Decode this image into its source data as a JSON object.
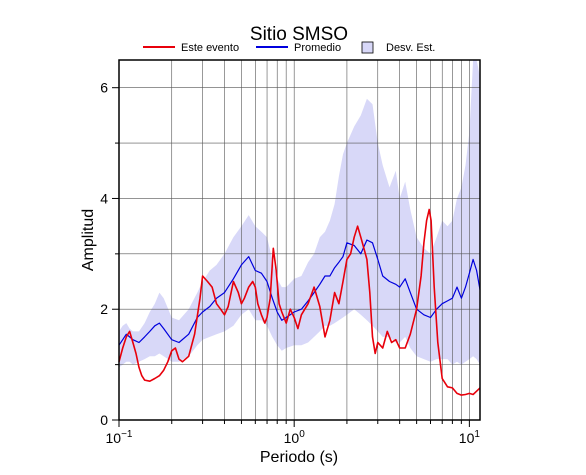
{
  "chart_data": {
    "type": "line",
    "title": "Sitio SMSO",
    "xlabel": "Periodo (s)",
    "ylabel": "Amplitud",
    "x_scale": "log",
    "xlim": [
      0.1,
      11.5
    ],
    "ylim": [
      0,
      6.5
    ],
    "x_ticks": [
      {
        "value": 0.1,
        "base": "10",
        "exp": "−1"
      },
      {
        "value": 1,
        "base": "10",
        "exp": "0"
      },
      {
        "value": 10,
        "base": "10",
        "exp": "1"
      }
    ],
    "y_ticks": [
      0,
      2,
      4,
      6
    ],
    "grid": true,
    "legend": {
      "placement": "top",
      "entries": [
        {
          "label": "Este evento",
          "kind": "line",
          "color": "#e8000b"
        },
        {
          "label": "Promedio",
          "kind": "line",
          "color": "#0000dd"
        },
        {
          "label": "Desv. Est.",
          "kind": "band",
          "color": "#d8d8f8"
        }
      ]
    },
    "series": [
      {
        "name": "Este evento",
        "color": "#e8000b",
        "points": [
          [
            0.1,
            1.05
          ],
          [
            0.105,
            1.3
          ],
          [
            0.11,
            1.5
          ],
          [
            0.115,
            1.6
          ],
          [
            0.12,
            1.4
          ],
          [
            0.125,
            1.2
          ],
          [
            0.13,
            0.95
          ],
          [
            0.135,
            0.8
          ],
          [
            0.14,
            0.72
          ],
          [
            0.15,
            0.7
          ],
          [
            0.16,
            0.75
          ],
          [
            0.17,
            0.8
          ],
          [
            0.18,
            0.9
          ],
          [
            0.19,
            1.05
          ],
          [
            0.2,
            1.25
          ],
          [
            0.21,
            1.3
          ],
          [
            0.22,
            1.1
          ],
          [
            0.23,
            1.05
          ],
          [
            0.25,
            1.15
          ],
          [
            0.27,
            1.55
          ],
          [
            0.29,
            2.2
          ],
          [
            0.3,
            2.6
          ],
          [
            0.32,
            2.5
          ],
          [
            0.34,
            2.4
          ],
          [
            0.36,
            2.1
          ],
          [
            0.38,
            2.0
          ],
          [
            0.4,
            1.9
          ],
          [
            0.42,
            2.05
          ],
          [
            0.45,
            2.5
          ],
          [
            0.48,
            2.3
          ],
          [
            0.5,
            2.1
          ],
          [
            0.52,
            2.2
          ],
          [
            0.55,
            2.4
          ],
          [
            0.58,
            2.5
          ],
          [
            0.6,
            2.4
          ],
          [
            0.62,
            2.1
          ],
          [
            0.65,
            1.9
          ],
          [
            0.68,
            1.75
          ],
          [
            0.7,
            1.85
          ],
          [
            0.73,
            2.2
          ],
          [
            0.76,
            3.1
          ],
          [
            0.79,
            2.7
          ],
          [
            0.82,
            2.1
          ],
          [
            0.85,
            1.95
          ],
          [
            0.9,
            1.75
          ],
          [
            0.95,
            2.0
          ],
          [
            1.0,
            1.85
          ],
          [
            1.05,
            1.65
          ],
          [
            1.1,
            1.9
          ],
          [
            1.2,
            2.1
          ],
          [
            1.3,
            2.4
          ],
          [
            1.4,
            2.05
          ],
          [
            1.5,
            1.5
          ],
          [
            1.6,
            1.8
          ],
          [
            1.7,
            2.3
          ],
          [
            1.8,
            2.1
          ],
          [
            1.9,
            2.5
          ],
          [
            2.0,
            2.9
          ],
          [
            2.1,
            3.0
          ],
          [
            2.2,
            3.3
          ],
          [
            2.3,
            3.5
          ],
          [
            2.4,
            3.3
          ],
          [
            2.5,
            3.1
          ],
          [
            2.6,
            2.9
          ],
          [
            2.7,
            2.3
          ],
          [
            2.8,
            1.5
          ],
          [
            2.9,
            1.2
          ],
          [
            3.0,
            1.4
          ],
          [
            3.2,
            1.3
          ],
          [
            3.4,
            1.6
          ],
          [
            3.6,
            1.4
          ],
          [
            3.8,
            1.45
          ],
          [
            4.0,
            1.3
          ],
          [
            4.3,
            1.3
          ],
          [
            4.6,
            1.55
          ],
          [
            5.0,
            2.0
          ],
          [
            5.3,
            2.6
          ],
          [
            5.5,
            3.2
          ],
          [
            5.7,
            3.6
          ],
          [
            5.9,
            3.8
          ],
          [
            6.05,
            3.6
          ],
          [
            6.3,
            2.4
          ],
          [
            6.6,
            1.4
          ],
          [
            7.0,
            0.75
          ],
          [
            7.5,
            0.6
          ],
          [
            8.0,
            0.58
          ],
          [
            8.5,
            0.48
          ],
          [
            9.0,
            0.45
          ],
          [
            9.5,
            0.46
          ],
          [
            10.0,
            0.48
          ],
          [
            10.5,
            0.46
          ],
          [
            11.0,
            0.52
          ],
          [
            11.5,
            0.58
          ]
        ]
      },
      {
        "name": "Promedio",
        "color": "#0000dd",
        "points": [
          [
            0.1,
            1.35
          ],
          [
            0.105,
            1.45
          ],
          [
            0.11,
            1.55
          ],
          [
            0.115,
            1.5
          ],
          [
            0.12,
            1.45
          ],
          [
            0.13,
            1.4
          ],
          [
            0.14,
            1.5
          ],
          [
            0.15,
            1.6
          ],
          [
            0.16,
            1.7
          ],
          [
            0.17,
            1.75
          ],
          [
            0.18,
            1.65
          ],
          [
            0.2,
            1.45
          ],
          [
            0.22,
            1.4
          ],
          [
            0.25,
            1.55
          ],
          [
            0.28,
            1.85
          ],
          [
            0.3,
            1.95
          ],
          [
            0.33,
            2.05
          ],
          [
            0.36,
            2.2
          ],
          [
            0.4,
            2.3
          ],
          [
            0.45,
            2.55
          ],
          [
            0.5,
            2.8
          ],
          [
            0.55,
            2.95
          ],
          [
            0.6,
            2.7
          ],
          [
            0.65,
            2.65
          ],
          [
            0.7,
            2.5
          ],
          [
            0.75,
            2.2
          ],
          [
            0.8,
            1.95
          ],
          [
            0.85,
            1.8
          ],
          [
            0.9,
            1.85
          ],
          [
            1.0,
            1.95
          ],
          [
            1.1,
            2.0
          ],
          [
            1.2,
            2.15
          ],
          [
            1.3,
            2.3
          ],
          [
            1.4,
            2.45
          ],
          [
            1.5,
            2.6
          ],
          [
            1.6,
            2.6
          ],
          [
            1.7,
            2.75
          ],
          [
            1.8,
            2.85
          ],
          [
            1.9,
            2.95
          ],
          [
            2.0,
            3.2
          ],
          [
            2.2,
            3.15
          ],
          [
            2.4,
            3.0
          ],
          [
            2.6,
            3.25
          ],
          [
            2.8,
            3.2
          ],
          [
            3.0,
            2.9
          ],
          [
            3.2,
            2.6
          ],
          [
            3.5,
            2.5
          ],
          [
            3.8,
            2.45
          ],
          [
            4.0,
            2.4
          ],
          [
            4.3,
            2.55
          ],
          [
            4.6,
            2.3
          ],
          [
            5.0,
            2.0
          ],
          [
            5.5,
            1.9
          ],
          [
            6.0,
            1.85
          ],
          [
            6.5,
            2.0
          ],
          [
            7.0,
            2.1
          ],
          [
            7.5,
            2.15
          ],
          [
            8.0,
            2.2
          ],
          [
            8.5,
            2.4
          ],
          [
            9.0,
            2.2
          ],
          [
            9.5,
            2.4
          ],
          [
            10.0,
            2.65
          ],
          [
            10.5,
            2.9
          ],
          [
            11.0,
            2.7
          ],
          [
            11.5,
            2.35
          ]
        ]
      },
      {
        "name": "Desv. Est.",
        "color": "#d8d8f8",
        "kind": "band",
        "points": [
          [
            0.1,
            0.95,
            1.6
          ],
          [
            0.105,
            1.0,
            1.7
          ],
          [
            0.11,
            1.05,
            1.75
          ],
          [
            0.115,
            1.05,
            1.65
          ],
          [
            0.12,
            1.0,
            1.6
          ],
          [
            0.13,
            1.05,
            1.6
          ],
          [
            0.14,
            1.1,
            1.75
          ],
          [
            0.15,
            1.15,
            1.95
          ],
          [
            0.16,
            1.15,
            2.1
          ],
          [
            0.17,
            1.2,
            2.3
          ],
          [
            0.18,
            1.15,
            2.2
          ],
          [
            0.2,
            1.05,
            1.85
          ],
          [
            0.22,
            1.05,
            1.8
          ],
          [
            0.25,
            1.15,
            2.0
          ],
          [
            0.28,
            1.35,
            2.3
          ],
          [
            0.3,
            1.45,
            2.5
          ],
          [
            0.33,
            1.5,
            2.7
          ],
          [
            0.36,
            1.55,
            2.8
          ],
          [
            0.4,
            1.6,
            3.0
          ],
          [
            0.45,
            1.7,
            3.3
          ],
          [
            0.5,
            1.9,
            3.5
          ],
          [
            0.55,
            2.0,
            3.7
          ],
          [
            0.6,
            1.8,
            3.5
          ],
          [
            0.65,
            1.8,
            3.4
          ],
          [
            0.7,
            1.7,
            3.3
          ],
          [
            0.75,
            1.5,
            2.9
          ],
          [
            0.8,
            1.35,
            2.55
          ],
          [
            0.85,
            1.25,
            2.4
          ],
          [
            0.9,
            1.3,
            2.4
          ],
          [
            1.0,
            1.35,
            2.55
          ],
          [
            1.1,
            1.35,
            2.6
          ],
          [
            1.2,
            1.4,
            2.85
          ],
          [
            1.3,
            1.5,
            3.0
          ],
          [
            1.4,
            1.6,
            3.3
          ],
          [
            1.5,
            1.7,
            3.4
          ],
          [
            1.6,
            1.7,
            3.6
          ],
          [
            1.7,
            1.75,
            3.9
          ],
          [
            1.8,
            1.8,
            4.4
          ],
          [
            1.9,
            1.85,
            4.8
          ],
          [
            2.0,
            1.9,
            5.0
          ],
          [
            2.2,
            2.0,
            5.3
          ],
          [
            2.4,
            1.9,
            5.5
          ],
          [
            2.6,
            1.8,
            5.8
          ],
          [
            2.8,
            1.7,
            5.7
          ],
          [
            3.0,
            1.6,
            5.0
          ],
          [
            3.2,
            1.5,
            4.6
          ],
          [
            3.5,
            1.5,
            4.2
          ],
          [
            3.8,
            1.4,
            4.5
          ],
          [
            4.0,
            1.4,
            4.0
          ],
          [
            4.3,
            1.5,
            4.3
          ],
          [
            4.6,
            1.3,
            3.8
          ],
          [
            5.0,
            1.15,
            3.3
          ],
          [
            5.5,
            1.1,
            3.1
          ],
          [
            6.0,
            1.05,
            3.0
          ],
          [
            6.5,
            1.1,
            3.3
          ],
          [
            7.0,
            1.1,
            3.6
          ],
          [
            7.5,
            1.1,
            3.5
          ],
          [
            8.0,
            1.0,
            3.6
          ],
          [
            8.5,
            1.05,
            4.0
          ],
          [
            9.0,
            1.0,
            4.2
          ],
          [
            9.5,
            1.05,
            4.6
          ],
          [
            10.0,
            1.1,
            5.2
          ],
          [
            10.5,
            1.15,
            6.5
          ],
          [
            11.0,
            1.1,
            6.5
          ],
          [
            11.5,
            1.0,
            6.2
          ]
        ]
      }
    ]
  }
}
